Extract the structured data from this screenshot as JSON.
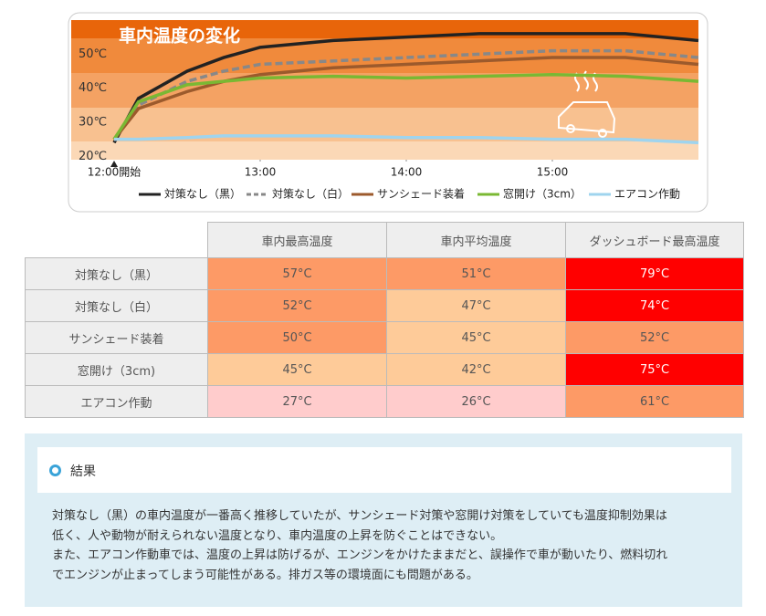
{
  "chart_data": {
    "type": "line",
    "title": "車内温度の変化",
    "xlim": [
      0,
      240
    ],
    "xticks": [
      {
        "value": 0,
        "label": "12:00開始"
      },
      {
        "value": 60,
        "label": "13:00"
      },
      {
        "value": 120,
        "label": "14:00"
      },
      {
        "value": 180,
        "label": "15:00"
      }
    ],
    "ylim": [
      19,
      60
    ],
    "yticks": [
      {
        "value": 20,
        "label": "20℃"
      },
      {
        "value": 30,
        "label": "30℃"
      },
      {
        "value": 40,
        "label": "40℃"
      },
      {
        "value": 50,
        "label": "50℃"
      }
    ],
    "x": [
      0,
      10,
      30,
      45,
      60,
      90,
      120,
      150,
      180,
      210,
      240
    ],
    "series": [
      {
        "name": "対策なし（黒）",
        "color": "#222222",
        "values": [
          24,
          37,
          45,
          49,
          52,
          54,
          55,
          56,
          56,
          56,
          54
        ]
      },
      {
        "name": "対策なし（白）",
        "color": "#888888",
        "dashed": true,
        "values": [
          25,
          35,
          42,
          45,
          47,
          48,
          49,
          50,
          51,
          51,
          49
        ]
      },
      {
        "name": "サンシェード装着",
        "color": "#9c5a2c",
        "values": [
          25,
          34,
          39,
          42,
          44,
          46,
          47,
          48,
          49,
          49,
          47
        ]
      },
      {
        "name": "窓開け（3cm）",
        "color": "#7ab833",
        "values": [
          25,
          36,
          41,
          42,
          43,
          43.5,
          43,
          43.5,
          44,
          43.5,
          42
        ]
      },
      {
        "name": "エアコン作動",
        "color": "#9fd4ee",
        "values": [
          25,
          25,
          25.5,
          26,
          26,
          26,
          25.5,
          25.5,
          25,
          25,
          24
        ]
      }
    ]
  },
  "table": {
    "header": [
      "車内最高温度",
      "車内平均温度",
      "ダッシュボード最高温度"
    ],
    "rows": [
      {
        "label": "対策なし（黒）",
        "cells": [
          "57°C",
          "51°C",
          "79°C"
        ],
        "colors": [
          "#fd9a66",
          "#fd9a66",
          "#ff0000"
        ]
      },
      {
        "label": "対策なし（白）",
        "cells": [
          "52°C",
          "47°C",
          "74°C"
        ],
        "colors": [
          "#fd9a66",
          "#fecb99",
          "#ff0000"
        ]
      },
      {
        "label": "サンシェード装着",
        "cells": [
          "50°C",
          "45°C",
          "52°C"
        ],
        "colors": [
          "#fd9a66",
          "#fecb99",
          "#fd9a66"
        ]
      },
      {
        "label": "窓開け（3cm)",
        "cells": [
          "45°C",
          "42°C",
          "75°C"
        ],
        "colors": [
          "#fecb99",
          "#fecb99",
          "#ff0000"
        ]
      },
      {
        "label": "エアコン作動",
        "cells": [
          "27°C",
          "26°C",
          "61°C"
        ],
        "colors": [
          "#ffcccc",
          "#ffcccc",
          "#fd9a66"
        ]
      }
    ]
  },
  "result": {
    "title": "結果",
    "lines": [
      "対策なし（黒）の車内温度が一番高く推移していたが、サンシェード対策や窓開け対策をしていても温度抑制効果は",
      "低く、人や動物が耐えられない温度となり、車内温度の上昇を防ぐことはできない。",
      "また、エアコン作動車では、温度の上昇は防げるが、エンジンをかけたままだと、誤操作で車が動いたり、燃料切れ",
      "でエンジンが止まってしまう可能性がある。排ガス等の環境面にも問題がある。"
    ]
  }
}
